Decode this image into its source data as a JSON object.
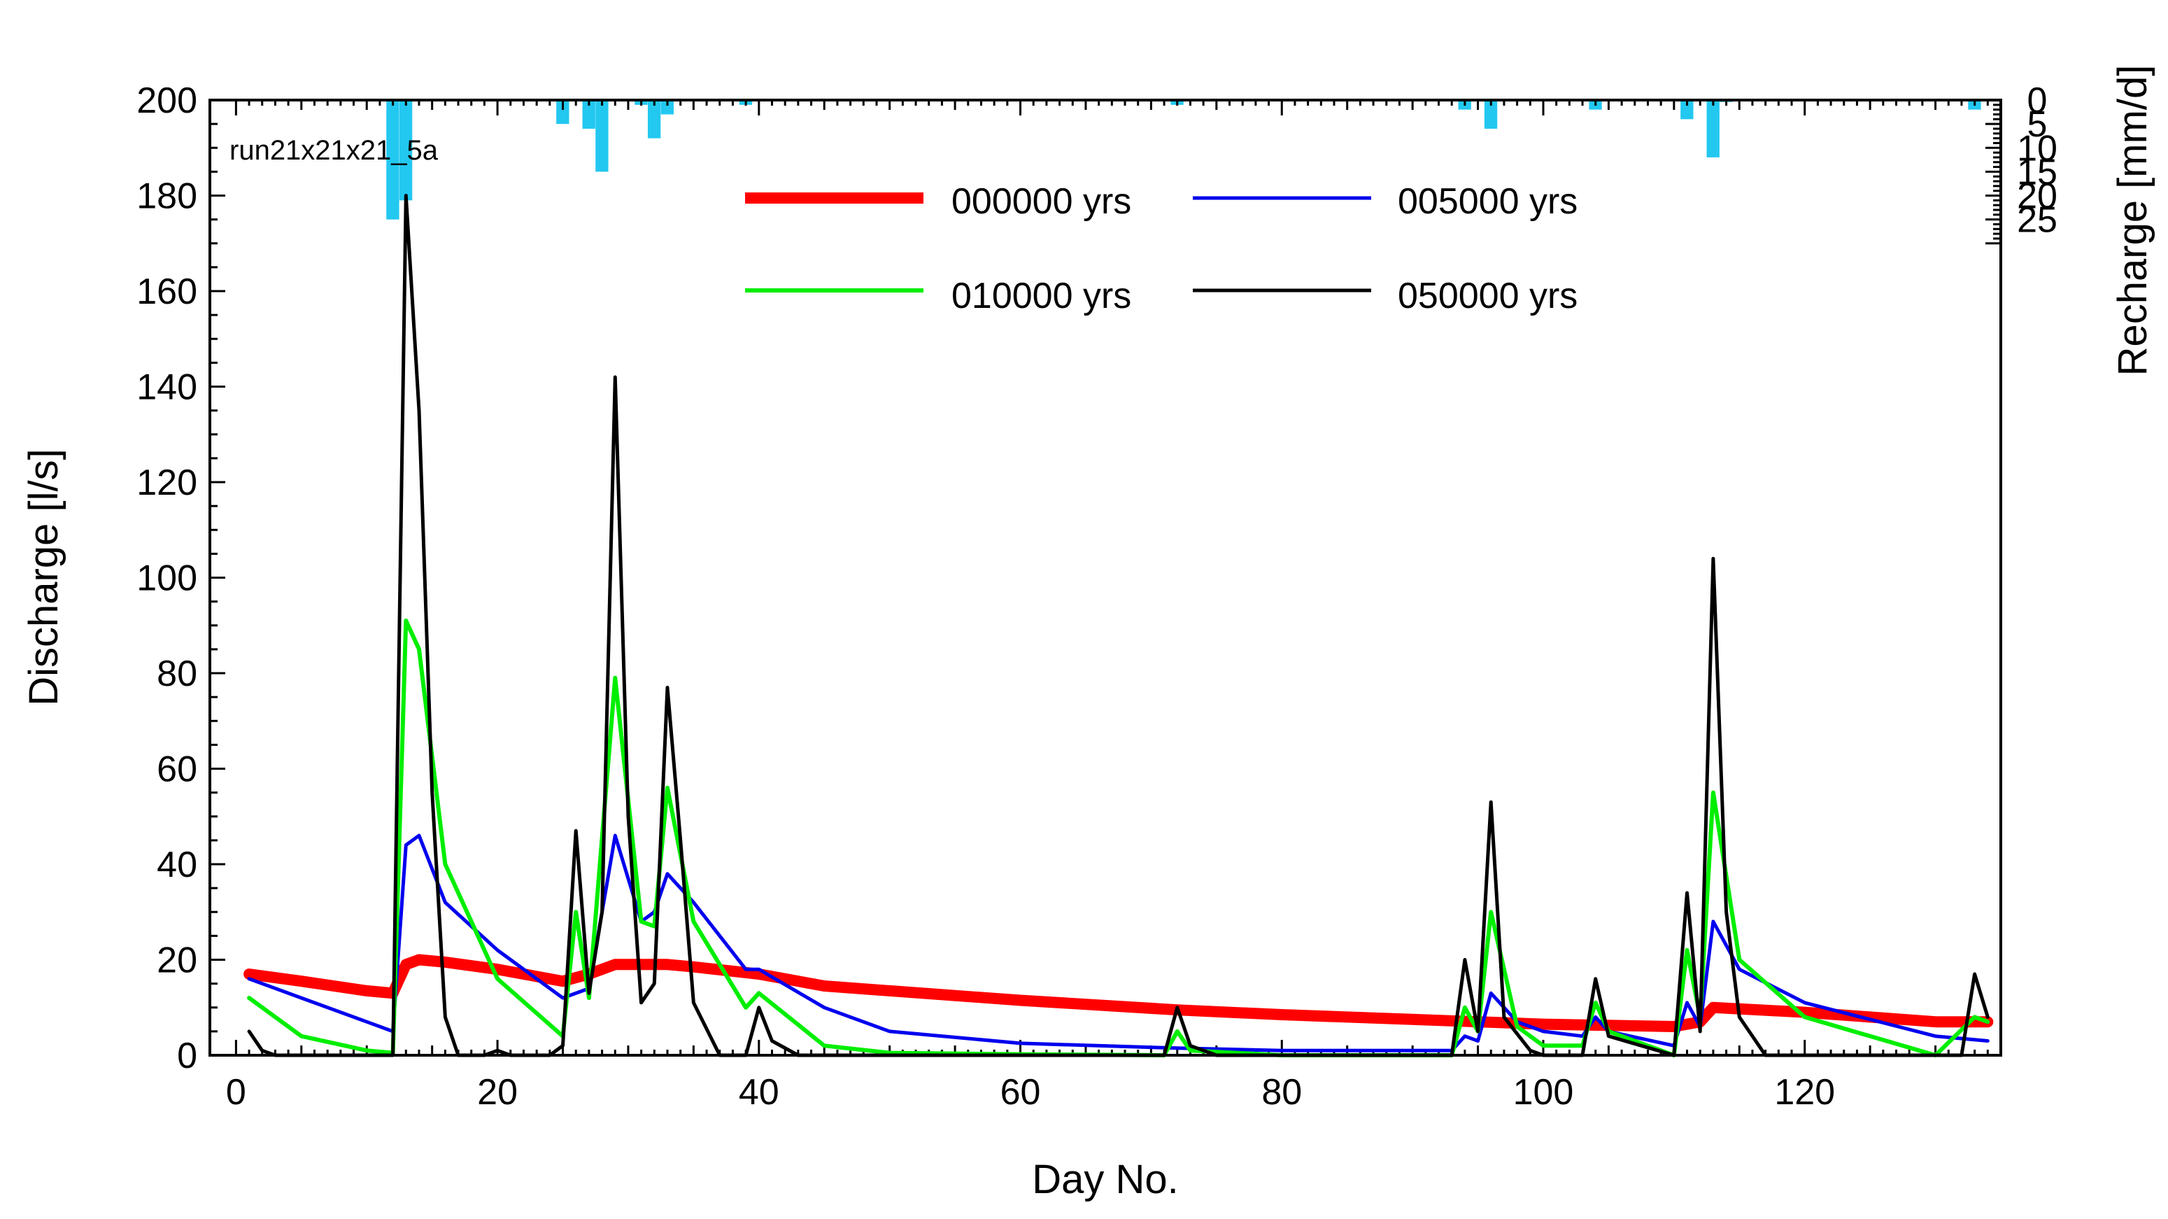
{
  "chart_data": {
    "type": "line",
    "run_label": "run21x21x21_5a",
    "xlabel": "Day No.",
    "ylabel": "Discharge [l/s]",
    "y2label": "Recharge [mm/d]",
    "xlim": [
      -2,
      135
    ],
    "ylim": [
      0,
      200
    ],
    "y2lim": [
      0,
      200
    ],
    "x_ticks": [
      0,
      20,
      40,
      60,
      80,
      100,
      120
    ],
    "y_ticks": [
      0,
      20,
      40,
      60,
      80,
      100,
      120,
      140,
      160,
      180,
      200
    ],
    "y2_ticks": [
      0,
      5,
      10,
      15,
      20,
      25
    ],
    "colors": {
      "s000000": "#ff0000",
      "s005000": "#0000ee",
      "s010000": "#00ee00",
      "s050000": "#000000",
      "recharge": "#22c8f0"
    },
    "recharge": {
      "name": "Recharge",
      "days": [
        12,
        13,
        25,
        27,
        28,
        31,
        32,
        33,
        39,
        72,
        94,
        96,
        104,
        111,
        113,
        114,
        133
      ],
      "values": [
        25,
        21,
        5,
        6,
        15,
        1,
        8,
        3,
        1,
        1,
        2,
        6,
        2,
        4,
        12,
        0.4,
        2
      ]
    },
    "series": [
      {
        "name": "000000 yrs",
        "x": [
          1,
          5,
          10,
          12,
          13,
          14,
          16,
          20,
          25,
          27,
          29,
          33,
          35,
          40,
          45,
          50,
          60,
          72,
          80,
          90,
          100,
          110,
          112,
          113,
          120,
          130,
          134
        ],
        "values": [
          17,
          15.5,
          13.5,
          13,
          19,
          20,
          19.5,
          18,
          15.5,
          17,
          19,
          19,
          18.5,
          17,
          14.5,
          13.5,
          11.5,
          9.5,
          8.5,
          7.5,
          6.5,
          6,
          7,
          10,
          9,
          7,
          7
        ]
      },
      {
        "name": "005000 yrs",
        "x": [
          1,
          5,
          10,
          12,
          13,
          14,
          16,
          20,
          25,
          27,
          29,
          31,
          32,
          33,
          35,
          39,
          40,
          45,
          50,
          60,
          72,
          80,
          93,
          94,
          95,
          96,
          98,
          100,
          103,
          104,
          105,
          110,
          111,
          112,
          113,
          115,
          120,
          130,
          134
        ],
        "values": [
          16,
          12,
          7,
          5,
          44,
          46,
          32,
          22,
          12,
          14,
          46,
          28,
          30,
          38,
          32,
          18,
          18,
          10,
          5,
          2.5,
          1.5,
          1,
          1,
          4,
          3,
          13,
          7,
          5,
          4,
          8,
          5,
          2,
          11,
          6,
          28,
          18,
          11,
          4,
          3
        ]
      },
      {
        "name": "010000 yrs",
        "x": [
          1,
          5,
          10,
          12,
          13,
          14,
          16,
          20,
          25,
          26,
          27,
          29,
          31,
          32,
          33,
          35,
          39,
          40,
          45,
          50,
          60,
          71,
          72,
          73,
          80,
          93,
          94,
          95,
          96,
          98,
          100,
          103,
          104,
          105,
          110,
          111,
          112,
          113,
          115,
          120,
          130,
          133,
          134
        ],
        "values": [
          12,
          4,
          1,
          0.5,
          91,
          85,
          40,
          16,
          4,
          30,
          12,
          79,
          28,
          27,
          56,
          28,
          10,
          13,
          2,
          0.5,
          0.2,
          0,
          5,
          1,
          0,
          0,
          10,
          5,
          30,
          6,
          2,
          2,
          11,
          5,
          0,
          22,
          8,
          55,
          20,
          8,
          0,
          8,
          7
        ]
      },
      {
        "name": "050000 yrs",
        "x": [
          1,
          2,
          3,
          5,
          10,
          12,
          13,
          14,
          15,
          16,
          17,
          19,
          20,
          21,
          24,
          25,
          26,
          27,
          28,
          29,
          30,
          31,
          32,
          33,
          34,
          35,
          37,
          39,
          40,
          41,
          43,
          70,
          71,
          72,
          73,
          75,
          93,
          94,
          95,
          96,
          97,
          99,
          100,
          103,
          104,
          105,
          110,
          111,
          112,
          113,
          114,
          115,
          117,
          132,
          133,
          134
        ],
        "values": [
          5,
          1,
          0,
          0,
          0,
          0,
          180,
          135,
          55,
          8,
          0,
          0,
          1,
          0,
          0,
          2,
          47,
          13,
          30,
          142,
          50,
          11,
          15,
          77,
          45,
          11,
          0,
          0,
          10,
          3,
          0,
          0,
          0,
          10,
          2,
          0,
          0,
          20,
          5,
          53,
          8,
          1,
          0,
          0,
          16,
          4,
          0,
          34,
          5,
          104,
          30,
          8,
          0,
          0,
          17,
          8
        ]
      }
    ]
  }
}
